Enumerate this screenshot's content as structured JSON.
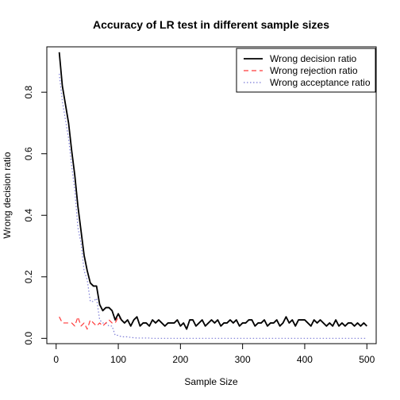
{
  "chart_data": {
    "type": "line",
    "title": "Accuracy of LR test in different sample sizes",
    "xlabel": "Sample Size",
    "ylabel": "Wrong decision ratio",
    "xlim": [
      0,
      500
    ],
    "ylim": [
      0,
      0.9
    ],
    "x_ticks": [
      0,
      100,
      200,
      300,
      400,
      500
    ],
    "y_ticks": [
      0.0,
      0.2,
      0.4,
      0.6,
      0.8
    ],
    "x_tick_labels": [
      "0",
      "100",
      "200",
      "300",
      "400",
      "500"
    ],
    "y_tick_labels": [
      "0.0",
      "0.2",
      "0.4",
      "0.6",
      "0.8"
    ],
    "grid": false,
    "legend_position": "top-right",
    "series": [
      {
        "name": "Wrong decision ratio",
        "color": "#000000",
        "style": "solid",
        "x": [
          5,
          10,
          15,
          20,
          25,
          30,
          35,
          40,
          45,
          50,
          55,
          60,
          65,
          70,
          75,
          80,
          85,
          90,
          95,
          100,
          105,
          110,
          115,
          120,
          125,
          130,
          135,
          140,
          145,
          150,
          155,
          160,
          165,
          170,
          175,
          180,
          185,
          190,
          195,
          200,
          205,
          210,
          215,
          220,
          225,
          230,
          235,
          240,
          245,
          250,
          255,
          260,
          265,
          270,
          275,
          280,
          285,
          290,
          295,
          300,
          305,
          310,
          315,
          320,
          325,
          330,
          335,
          340,
          345,
          350,
          355,
          360,
          365,
          370,
          375,
          380,
          385,
          390,
          395,
          400,
          405,
          410,
          415,
          420,
          425,
          430,
          435,
          440,
          445,
          450,
          455,
          460,
          465,
          470,
          475,
          480,
          485,
          490,
          495,
          500
        ],
        "y": [
          0.93,
          0.82,
          0.76,
          0.7,
          0.61,
          0.53,
          0.43,
          0.35,
          0.27,
          0.22,
          0.18,
          0.17,
          0.17,
          0.11,
          0.09,
          0.1,
          0.1,
          0.09,
          0.06,
          0.08,
          0.06,
          0.05,
          0.06,
          0.04,
          0.06,
          0.07,
          0.04,
          0.05,
          0.05,
          0.04,
          0.06,
          0.05,
          0.06,
          0.05,
          0.04,
          0.05,
          0.05,
          0.05,
          0.06,
          0.04,
          0.05,
          0.03,
          0.06,
          0.06,
          0.04,
          0.05,
          0.06,
          0.04,
          0.05,
          0.06,
          0.05,
          0.06,
          0.04,
          0.05,
          0.05,
          0.06,
          0.05,
          0.06,
          0.04,
          0.05,
          0.05,
          0.06,
          0.06,
          0.04,
          0.05,
          0.05,
          0.06,
          0.04,
          0.05,
          0.05,
          0.06,
          0.04,
          0.05,
          0.07,
          0.05,
          0.06,
          0.04,
          0.06,
          0.06,
          0.06,
          0.05,
          0.04,
          0.06,
          0.05,
          0.06,
          0.05,
          0.04,
          0.05,
          0.04,
          0.06,
          0.04,
          0.05,
          0.04,
          0.05,
          0.05,
          0.04,
          0.05,
          0.04,
          0.05,
          0.04
        ]
      },
      {
        "name": "Wrong rejection ratio",
        "color": "#ff3b3b",
        "style": "dashed",
        "x": [
          5,
          10,
          15,
          20,
          25,
          30,
          35,
          40,
          45,
          50,
          55,
          60,
          65,
          70,
          75,
          80,
          85,
          90,
          95,
          100,
          105,
          110,
          115,
          120,
          125,
          130,
          135,
          140,
          145,
          150,
          155,
          160,
          165,
          170,
          175,
          180,
          185,
          190,
          195,
          200,
          205,
          210,
          215,
          220,
          225,
          230,
          235,
          240,
          245,
          250,
          255,
          260,
          265,
          270,
          275,
          280,
          285,
          290,
          295,
          300,
          305,
          310,
          315,
          320,
          325,
          330,
          335,
          340,
          345,
          350,
          355,
          360,
          365,
          370,
          375,
          380,
          385,
          390,
          395,
          400,
          405,
          410,
          415,
          420,
          425,
          430,
          435,
          440,
          445,
          450,
          455,
          460,
          465,
          470,
          475,
          480,
          485,
          490,
          495,
          500
        ],
        "y": [
          0.07,
          0.05,
          0.05,
          0.05,
          0.05,
          0.04,
          0.07,
          0.04,
          0.05,
          0.03,
          0.06,
          0.05,
          0.04,
          0.05,
          0.04,
          0.05,
          0.06,
          0.05,
          0.05,
          0.07,
          0.06,
          0.05,
          0.06,
          0.04,
          0.06,
          0.07,
          0.04,
          0.05,
          0.05,
          0.04,
          0.06,
          0.05,
          0.06,
          0.05,
          0.04,
          0.05,
          0.05,
          0.05,
          0.06,
          0.04,
          0.05,
          0.03,
          0.06,
          0.06,
          0.04,
          0.05,
          0.06,
          0.04,
          0.05,
          0.06,
          0.05,
          0.06,
          0.04,
          0.05,
          0.05,
          0.06,
          0.05,
          0.06,
          0.04,
          0.05,
          0.05,
          0.06,
          0.06,
          0.04,
          0.05,
          0.05,
          0.06,
          0.04,
          0.05,
          0.05,
          0.06,
          0.04,
          0.05,
          0.07,
          0.05,
          0.06,
          0.04,
          0.06,
          0.06,
          0.06,
          0.05,
          0.04,
          0.06,
          0.05,
          0.06,
          0.05,
          0.04,
          0.05,
          0.04,
          0.06,
          0.04,
          0.05,
          0.04,
          0.05,
          0.05,
          0.04,
          0.05,
          0.04,
          0.05,
          0.04
        ]
      },
      {
        "name": "Wrong acceptance ratio",
        "color": "#7b7bd6",
        "style": "dotted",
        "x": [
          5,
          10,
          15,
          20,
          25,
          30,
          35,
          40,
          45,
          50,
          55,
          60,
          65,
          70,
          75,
          80,
          85,
          90,
          95,
          100,
          105,
          110,
          115,
          120,
          125,
          130,
          135,
          140,
          145,
          150,
          155,
          160,
          165,
          170,
          175,
          180,
          185,
          190,
          195,
          200,
          205,
          210,
          215,
          220,
          225,
          230,
          235,
          240,
          245,
          250,
          255,
          260,
          265,
          270,
          275,
          280,
          285,
          290,
          295,
          300,
          305,
          310,
          315,
          320,
          325,
          330,
          335,
          340,
          345,
          350,
          355,
          360,
          365,
          370,
          375,
          380,
          385,
          390,
          395,
          400,
          405,
          410,
          415,
          420,
          425,
          430,
          435,
          440,
          445,
          450,
          455,
          460,
          465,
          470,
          475,
          480,
          485,
          490,
          495,
          500
        ],
        "y": [
          0.86,
          0.77,
          0.71,
          0.65,
          0.56,
          0.48,
          0.36,
          0.31,
          0.22,
          0.19,
          0.12,
          0.12,
          0.13,
          0.06,
          0.05,
          0.05,
          0.04,
          0.04,
          0.01,
          0.01,
          0.005,
          0.005,
          0.005,
          0.003,
          0.002,
          0.001,
          0.001,
          0.001,
          0.001,
          0.001,
          0,
          0,
          0,
          0,
          0,
          0,
          0,
          0,
          0,
          0,
          0,
          0,
          0,
          0,
          0,
          0,
          0,
          0,
          0,
          0,
          0,
          0,
          0,
          0,
          0,
          0,
          0,
          0,
          0,
          0,
          0,
          0,
          0,
          0,
          0,
          0,
          0,
          0,
          0,
          0,
          0,
          0,
          0,
          0,
          0,
          0,
          0,
          0,
          0,
          0,
          0,
          0,
          0,
          0,
          0,
          0,
          0,
          0,
          0,
          0,
          0,
          0,
          0,
          0,
          0,
          0,
          0,
          0,
          0,
          0
        ]
      }
    ]
  }
}
